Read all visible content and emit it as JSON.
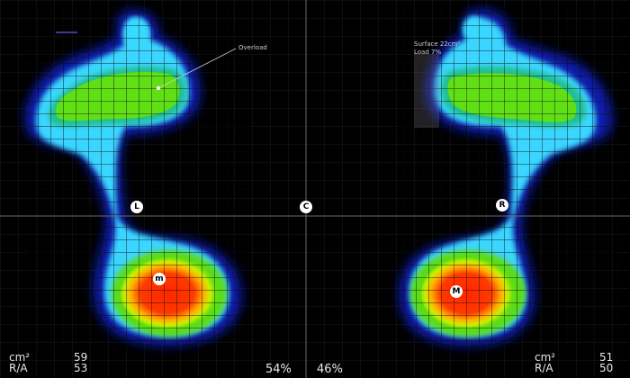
{
  "colors": {
    "background": "#000000",
    "grid": "#1c1c1c",
    "axis": "#6a6a6a",
    "pressure_low": "#0014a8",
    "pressure_mid": "#2dd8ff",
    "pressure_green": "#55e010",
    "pressure_high": "#ff3000"
  },
  "annotations": {
    "overload": "Overload",
    "surface": "Surface 22cm²",
    "load": "Load 7%"
  },
  "markers": {
    "left": "L",
    "center": "C",
    "right": "R",
    "left_max": "m",
    "right_max": "M"
  },
  "left_stats": {
    "area_label": "cm²",
    "area_value": "59",
    "ra_label": "R/A",
    "ra_value": "53"
  },
  "right_stats": {
    "area_label": "cm²",
    "area_value": "51",
    "ra_label": "R/A",
    "ra_value": "50"
  },
  "distribution": {
    "left_percent": "54%",
    "right_percent": "46%"
  }
}
